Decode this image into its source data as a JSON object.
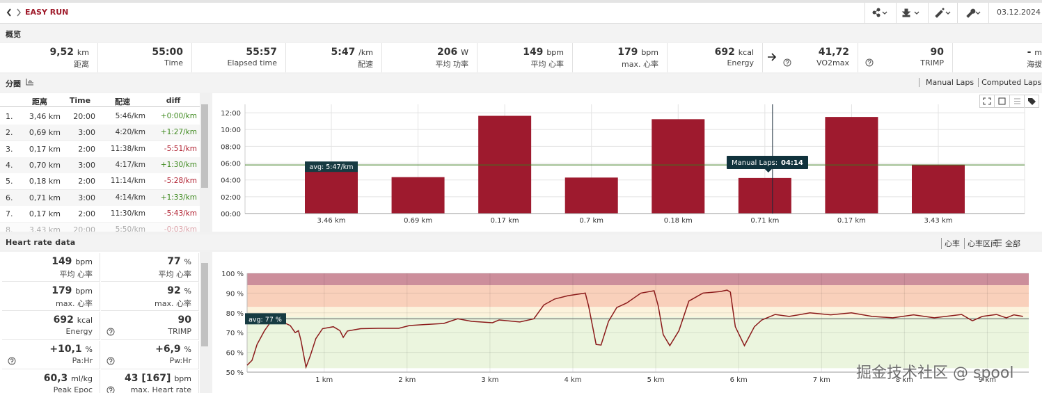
{
  "header": {
    "title": "EASY RUN",
    "date": "03.12.2024"
  },
  "overview": {
    "title": "概览",
    "items": [
      {
        "value": "9,52",
        "unit": "km",
        "label": "距离"
      },
      {
        "value": "55:00",
        "label": "Time"
      },
      {
        "value": "55:57",
        "label": "Elapsed time"
      },
      {
        "value": "5:47",
        "unit": "/km",
        "label": "配速"
      },
      {
        "value": "206",
        "unit": "W",
        "label": "平均 功率"
      },
      {
        "value": "149",
        "unit": "bpm",
        "label": "平均 心率"
      },
      {
        "value": "179",
        "unit": "bpm",
        "label": "max. 心率"
      },
      {
        "value": "692",
        "unit": "kcal",
        "label": "Energy"
      },
      {
        "value": "41,72",
        "label": "VO2max",
        "help": true,
        "link": true
      },
      {
        "value": "90",
        "label": "TRIMP",
        "help": true
      },
      {
        "value": "-",
        "unit": "m",
        "label": "海拔"
      }
    ]
  },
  "laps": {
    "title": "分圈",
    "tabs": [
      "Manual Laps",
      "Computed Laps"
    ],
    "columns": [
      "距离",
      "Time",
      "配速",
      "diff"
    ],
    "rows": [
      [
        "1.",
        "3,46 km",
        "20:00",
        "5:46/km",
        "+0:00/km"
      ],
      [
        "2.",
        "0,69 km",
        "3:00",
        "4:20/km",
        "+1:27/km"
      ],
      [
        "3.",
        "0,17 km",
        "2:00",
        "11:38/km",
        "-5:51/km"
      ],
      [
        "4.",
        "0,70 km",
        "3:00",
        "4:17/km",
        "+1:30/km"
      ],
      [
        "5.",
        "0,18 km",
        "2:00",
        "11:14/km",
        "-5:28/km"
      ],
      [
        "6.",
        "0,71 km",
        "3:00",
        "4:14/km",
        "+1:33/km"
      ],
      [
        "7.",
        "0,17 km",
        "2:00",
        "11:30/km",
        "-5:43/km"
      ],
      [
        "8.",
        "3,43 km",
        "20:00",
        "5:50/km",
        "-0:03/km"
      ]
    ]
  },
  "heart": {
    "title": "Heart rate data",
    "tabs": [
      "心率",
      "心率区间",
      "全部"
    ],
    "stats": [
      [
        {
          "value": "149",
          "unit": "bpm",
          "label": "平均 心率"
        },
        {
          "value": "77",
          "unit": "%",
          "label": "平均 心率"
        }
      ],
      [
        {
          "value": "179",
          "unit": "bpm",
          "label": "max. 心率"
        },
        {
          "value": "92",
          "unit": "%",
          "label": "max. 心率"
        }
      ],
      [
        {
          "value": "692",
          "unit": "kcal",
          "label": "Energy"
        },
        {
          "value": "90",
          "label": "TRIMP",
          "help": true
        }
      ],
      [
        {
          "value": "+10,1",
          "unit": "%",
          "label": "Pa:Hr",
          "help": true
        },
        {
          "value": "+6,9",
          "unit": "%",
          "label": "Pw:Hr",
          "help": true
        }
      ],
      [
        {
          "value": "60,3",
          "unit": "ml/kg",
          "label": "Peak Epoc"
        },
        {
          "value": "43 [167]",
          "unit": "bpm",
          "label": "max. Heart rate",
          "help": true
        }
      ]
    ]
  },
  "chart_data": [
    {
      "type": "bar",
      "categories": [
        "3.46 km",
        "0.69 km",
        "0.17 km",
        "0.7 km",
        "0.18 km",
        "0.71 km",
        "0.17 km",
        "3.43 km"
      ],
      "values": [
        5.767,
        4.333,
        11.633,
        4.283,
        11.233,
        4.233,
        11.5,
        5.833
      ],
      "color": "#9e1a2e",
      "ylim": [
        0,
        13
      ],
      "yticks": [
        {
          "value": 0,
          "label": "00:00"
        },
        {
          "value": 2,
          "label": "02:00"
        },
        {
          "value": 4,
          "label": "04:00"
        },
        {
          "value": 6,
          "label": "06:00"
        },
        {
          "value": 8,
          "label": "08:00"
        },
        {
          "value": 10,
          "label": "10:00"
        },
        {
          "value": 12,
          "label": "12:00"
        }
      ],
      "grid": true,
      "average": {
        "value": 5.783,
        "label": "avg: 5:47/km",
        "color": "#3a7a1e"
      },
      "tooltip": {
        "label": "Manual Laps:",
        "value_text": "04:14"
      }
    },
    {
      "type": "line",
      "x": [
        0.07,
        0.13,
        0.19,
        0.28,
        0.36,
        0.48,
        0.59,
        0.65,
        0.69,
        0.72,
        0.78,
        0.83,
        0.9,
        0.98,
        1.11,
        1.19,
        1.23,
        1.28,
        1.44,
        1.65,
        1.78,
        1.9,
        2.03,
        2.19,
        2.44,
        2.61,
        2.78,
        3.03,
        3.11,
        3.36,
        3.53,
        3.65,
        3.78,
        3.94,
        4.15,
        4.19,
        4.28,
        4.34,
        4.43,
        4.53,
        4.65,
        4.82,
        4.98,
        5.03,
        5.09,
        5.17,
        5.28,
        5.4,
        5.57,
        5.78,
        5.86,
        5.9,
        5.96,
        6.07,
        6.19,
        6.28,
        6.44,
        6.61,
        6.86,
        7.11,
        7.36,
        7.61,
        7.86,
        8.11,
        8.36,
        8.69,
        8.82,
        8.94,
        9.11,
        9.23,
        9.32,
        9.43
      ],
      "values": [
        53.5,
        56,
        64,
        71,
        75.7,
        75.7,
        73.6,
        70,
        71,
        66,
        52.5,
        58,
        67,
        72,
        73,
        71,
        67.6,
        70.8,
        72,
        72.2,
        72.2,
        72.2,
        73.6,
        74,
        74.6,
        77,
        75.7,
        75,
        76.4,
        75.4,
        77,
        84,
        87,
        88.7,
        90,
        83.5,
        64,
        63.7,
        75.7,
        82.7,
        85,
        90,
        91.2,
        83.5,
        69,
        63.4,
        71,
        86,
        90,
        90.8,
        91.5,
        90.5,
        73,
        63.4,
        73,
        76.4,
        79.2,
        78.2,
        80,
        79,
        80,
        78.2,
        77.5,
        79,
        77.5,
        79.2,
        76,
        78.2,
        79.2,
        77.5,
        79,
        78.2
      ],
      "color": "#8b1a1a",
      "xlim": [
        0.07,
        9.5
      ],
      "ylim": [
        50,
        100
      ],
      "xticks": [
        {
          "value": 1,
          "label": "1 km"
        },
        {
          "value": 2,
          "label": "2 km"
        },
        {
          "value": 3,
          "label": "3 km"
        },
        {
          "value": 4,
          "label": "4 km"
        },
        {
          "value": 5,
          "label": "5 km"
        },
        {
          "value": 6,
          "label": "6 km"
        },
        {
          "value": 7,
          "label": "7 km"
        },
        {
          "value": 8,
          "label": "8 km"
        },
        {
          "value": 9,
          "label": "9 km"
        }
      ],
      "yticks": [
        {
          "value": 50,
          "label": "50 %"
        },
        {
          "value": 60,
          "label": "60 %"
        },
        {
          "value": 70,
          "label": "70 %"
        },
        {
          "value": 80,
          "label": "80 %"
        },
        {
          "value": 90,
          "label": "90 %"
        },
        {
          "value": 100,
          "label": "100 %"
        }
      ],
      "grid": true,
      "average": {
        "value": 77,
        "label": "avg: 77 %",
        "color": "#555555"
      },
      "zones": [
        {
          "range": [
            94,
            100
          ],
          "color": "#cc8e9b"
        },
        {
          "range": [
            83,
            94
          ],
          "color": "#f9d0bb"
        },
        {
          "range": [
            78,
            83
          ],
          "color": "#fcf3dc"
        },
        {
          "range": [
            52,
            78
          ],
          "color": "#ebf5de"
        }
      ]
    }
  ],
  "watermark": "掘金技术社区 @ spool"
}
